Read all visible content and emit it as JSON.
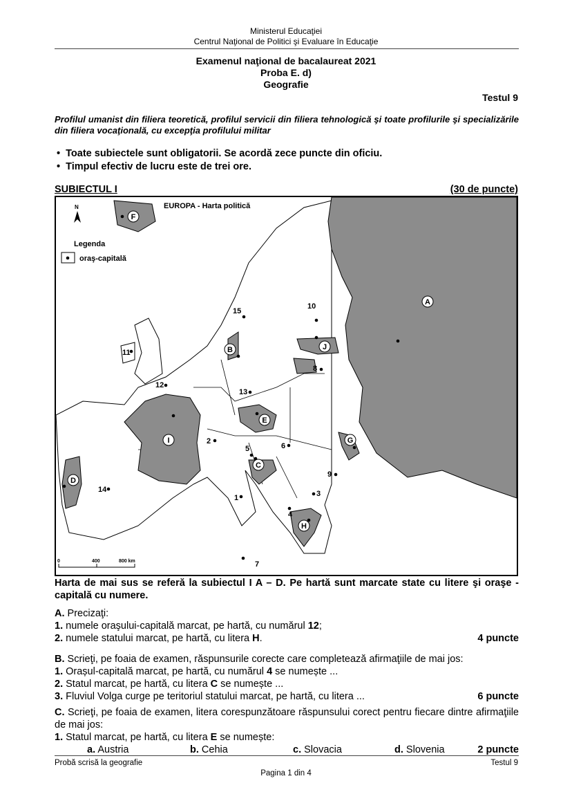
{
  "header": {
    "ministry": "Ministerul Educaţiei",
    "center": "Centrul Naţional de Politici şi Evaluare în Educaţie"
  },
  "exam": {
    "title": "Examenul naţional de bacalaureat 2021",
    "proba": "Proba E. d)",
    "subject": "Geografie",
    "test": "Testul 9"
  },
  "profile": "Profilul umanist din filiera teoretică, profilul servicii din filiera tehnologică şi toate profilurile şi specializările din filiera vocaţională, cu excepţia profilului militar",
  "rules": [
    "Toate subiectele sunt obligatorii. Se acordă zece puncte din oficiu.",
    "Timpul efectiv de lucru este de trei ore."
  ],
  "section": {
    "title": "SUBIECTUL I",
    "points": "(30 de puncte)"
  },
  "map": {
    "title": "EUROPA - Harta politică",
    "north": "N",
    "legend_title": "Legenda",
    "legend_item": "oraş-capitală",
    "scale": [
      "0",
      "400",
      "800 km"
    ],
    "fill_color": "#8c8c8c",
    "states": [
      "A",
      "B",
      "C",
      "D",
      "E",
      "F",
      "G",
      "H",
      "I",
      "J"
    ],
    "capitals": [
      "1",
      "2",
      "3",
      "4",
      "5",
      "6",
      "7",
      "8",
      "9",
      "10",
      "11",
      "12",
      "13",
      "14",
      "15"
    ]
  },
  "intro": "Harta de mai sus se referă la subiectul I A – D. Pe hartă sunt marcate state cu litere şi oraşe - capitală cu numere.",
  "partA": {
    "label": "A.",
    "text": "Precizaţi:",
    "items": [
      {
        "n": "1.",
        "pre": "numele oraşului-capitală marcat, pe hartă, cu numărul ",
        "b": "12",
        "post": ";"
      },
      {
        "n": "2.",
        "pre": "numele statului marcat, pe hartă, cu litera ",
        "b": "H",
        "post": "."
      }
    ],
    "points": "4 puncte"
  },
  "partB": {
    "label": "B.",
    "text": "Scrieţi, pe foaia de examen, răspunsurile corecte care completează afirmaţiile de mai jos:",
    "items": [
      {
        "n": "1.",
        "pre": "Orașul-capitală marcat, pe hartă, cu numărul ",
        "b": "4",
        "post": " se numește ..."
      },
      {
        "n": "2.",
        "pre": "Statul marcat, pe hartă, cu litera ",
        "b": "C",
        "post": " se numește ..."
      },
      {
        "n": "3.",
        "pre": "Fluviul Volga curge pe teritoriul statului marcat, pe hartă, cu litera ...",
        "b": "",
        "post": ""
      }
    ],
    "points": "6 puncte"
  },
  "partC": {
    "label": "C.",
    "text": "Scrieţi, pe foaia de examen, litera corespunzătoare răspunsului corect pentru fiecare dintre afirmaţiile de mai jos:",
    "q": {
      "n": "1.",
      "pre": "Statul marcat, pe hartă, cu litera ",
      "b": "E",
      "post": " se numește:"
    },
    "options": [
      {
        "l": "a.",
        "t": "Austria"
      },
      {
        "l": "b.",
        "t": "Cehia"
      },
      {
        "l": "c.",
        "t": "Slovacia"
      },
      {
        "l": "d.",
        "t": "Slovenia"
      }
    ],
    "points": "2 puncte"
  },
  "footer": {
    "left": "Probă scrisă la geografie",
    "right": "Testul 9",
    "page": "Pagina 1 din 4"
  }
}
